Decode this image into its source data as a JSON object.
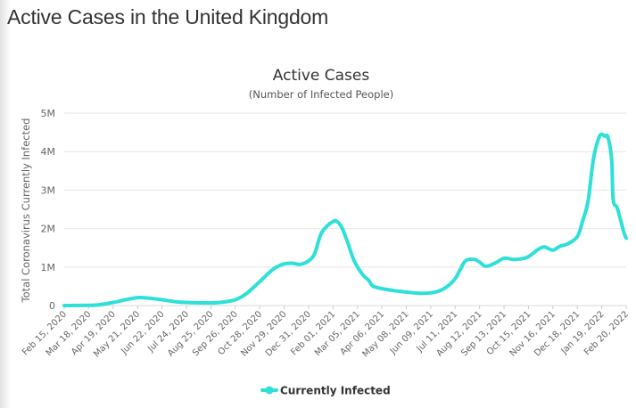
{
  "page": {
    "heading": "Active Cases in the United Kingdom"
  },
  "chart_data": {
    "type": "line",
    "title": "Active Cases",
    "subtitle": "(Number of Infected People)",
    "ylabel": "Total Coronavirus Currently Infected",
    "xlabel": "",
    "ylim": [
      0,
      5000000
    ],
    "yticks": [
      0,
      1000000,
      2000000,
      3000000,
      4000000,
      5000000
    ],
    "ytick_labels": [
      "0",
      "1M",
      "2M",
      "3M",
      "4M",
      "5M"
    ],
    "xlim": [
      "2020-02-15",
      "2022-02-20"
    ],
    "xtick_labels": [
      "Feb 15, 2020",
      "Mar 18, 2020",
      "Apr 19, 2020",
      "May 21, 2020",
      "Jun 22, 2020",
      "Jul 24, 2020",
      "Aug 25, 2020",
      "Sep 26, 2020",
      "Oct 28, 2020",
      "Nov 29, 2020",
      "Dec 31, 2020",
      "Feb 01, 2021",
      "Mar 05, 2021",
      "Apr 06, 2021",
      "May 08, 2021",
      "Jun 09, 2021",
      "Jul 11, 2021",
      "Aug 12, 2021",
      "Sep 13, 2021",
      "Oct 15, 2021",
      "Nov 16, 2021",
      "Dec 18, 2021",
      "Jan 19, 2022",
      "Feb 20, 2022"
    ],
    "grid": "horizontal",
    "legend": "bottom-center",
    "series": [
      {
        "name": "Currently Infected",
        "color": "#2ee0d8",
        "points": [
          [
            "2020-02-15",
            0
          ],
          [
            "2020-03-18",
            5000
          ],
          [
            "2020-04-01",
            20000
          ],
          [
            "2020-04-19",
            80000
          ],
          [
            "2020-05-05",
            150000
          ],
          [
            "2020-05-21",
            205000
          ],
          [
            "2020-06-01",
            200000
          ],
          [
            "2020-06-22",
            150000
          ],
          [
            "2020-07-10",
            100000
          ],
          [
            "2020-07-24",
            80000
          ],
          [
            "2020-08-25",
            70000
          ],
          [
            "2020-09-10",
            90000
          ],
          [
            "2020-09-26",
            150000
          ],
          [
            "2020-10-10",
            300000
          ],
          [
            "2020-10-28",
            620000
          ],
          [
            "2020-11-15",
            950000
          ],
          [
            "2020-11-29",
            1080000
          ],
          [
            "2020-12-10",
            1100000
          ],
          [
            "2020-12-20",
            1070000
          ],
          [
            "2020-12-31",
            1160000
          ],
          [
            "2021-01-08",
            1350000
          ],
          [
            "2021-01-16",
            1850000
          ],
          [
            "2021-01-25",
            2080000
          ],
          [
            "2021-02-01",
            2180000
          ],
          [
            "2021-02-05",
            2200000
          ],
          [
            "2021-02-12",
            2050000
          ],
          [
            "2021-02-20",
            1650000
          ],
          [
            "2021-03-01",
            1150000
          ],
          [
            "2021-03-12",
            800000
          ],
          [
            "2021-03-20",
            650000
          ],
          [
            "2021-03-25",
            510000
          ],
          [
            "2021-04-06",
            440000
          ],
          [
            "2021-04-25",
            380000
          ],
          [
            "2021-05-08",
            350000
          ],
          [
            "2021-05-25",
            320000
          ],
          [
            "2021-06-09",
            330000
          ],
          [
            "2021-06-20",
            380000
          ],
          [
            "2021-07-01",
            500000
          ],
          [
            "2021-07-11",
            700000
          ],
          [
            "2021-07-18",
            950000
          ],
          [
            "2021-07-25",
            1170000
          ],
          [
            "2021-08-05",
            1200000
          ],
          [
            "2021-08-12",
            1130000
          ],
          [
            "2021-08-20",
            1020000
          ],
          [
            "2021-09-01",
            1100000
          ],
          [
            "2021-09-13",
            1230000
          ],
          [
            "2021-09-25",
            1200000
          ],
          [
            "2021-10-05",
            1210000
          ],
          [
            "2021-10-15",
            1270000
          ],
          [
            "2021-10-28",
            1460000
          ],
          [
            "2021-11-05",
            1520000
          ],
          [
            "2021-11-16",
            1440000
          ],
          [
            "2021-11-25",
            1540000
          ],
          [
            "2021-12-05",
            1600000
          ],
          [
            "2021-12-18",
            1790000
          ],
          [
            "2021-12-25",
            2200000
          ],
          [
            "2022-01-01",
            2700000
          ],
          [
            "2022-01-08",
            3800000
          ],
          [
            "2022-01-15",
            4350000
          ],
          [
            "2022-01-19",
            4450000
          ],
          [
            "2022-01-23",
            4400000
          ],
          [
            "2022-01-27",
            4380000
          ],
          [
            "2022-02-01",
            3800000
          ],
          [
            "2022-02-03",
            2750000
          ],
          [
            "2022-02-08",
            2550000
          ],
          [
            "2022-02-13",
            2200000
          ],
          [
            "2022-02-17",
            1900000
          ],
          [
            "2022-02-20",
            1750000
          ]
        ]
      }
    ]
  }
}
